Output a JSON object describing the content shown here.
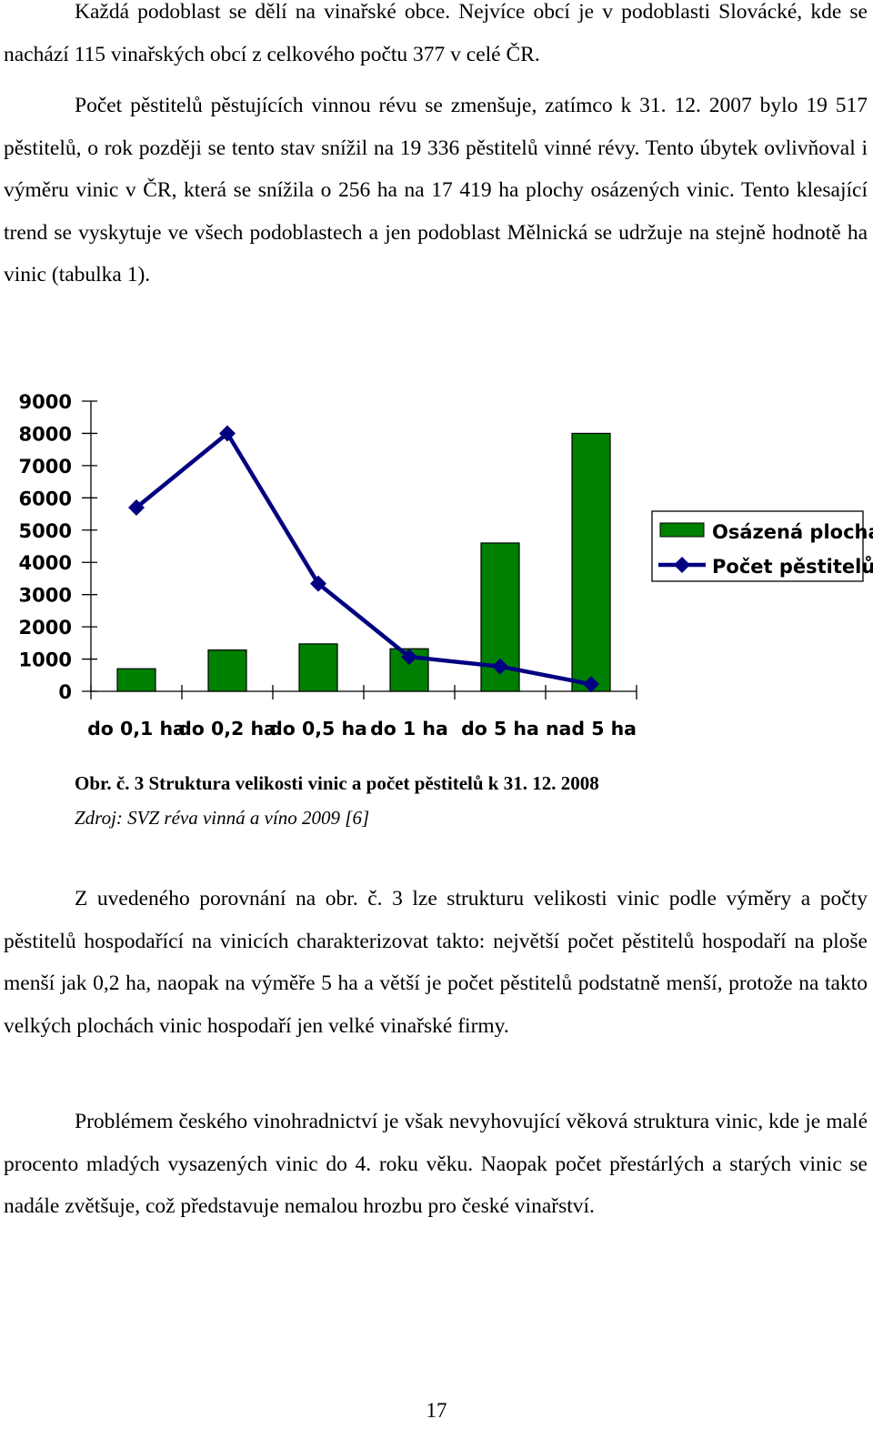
{
  "paragraphs": {
    "p1": "Každá podoblast se dělí na vinařské obce. Nejvíce obcí je v podoblasti Slovácké, kde se nachází 115 vinařských obcí z celkového počtu 377 v celé ČR.",
    "p2": "Počet pěstitelů pěstujících vinnou révu se zmenšuje, zatímco k 31. 12. 2007 bylo 19 517 pěstitelů, o rok později se tento stav snížil na 19 336 pěstitelů vinné révy. Tento úbytek ovlivňoval i výměru vinic v ČR, která se snížila o 256 ha na 17 419 ha plochy osázených vinic. Tento klesající trend se vyskytuje ve všech podoblastech a jen podoblast Mělnická se udržuje na stejně hodnotě ha vinic (tabulka 1).",
    "p3": "Z uvedeného porovnání na obr. č. 3 lze strukturu velikosti vinic podle výměry a počty pěstitelů hospodařící na vinicích charakterizovat takto: největší počet pěstitelů hospodaří na ploše menší jak 0,2 ha, naopak na výměře 5 ha a větší je počet pěstitelů podstatně menší, protože na takto velkých plochách vinic hospodaří jen velké vinařské firmy.",
    "p4": "Problémem českého vinohradnictví je však nevyhovující věková struktura vinic, kde je malé procento mladých vysazených vinic do 4. roku věku. Naopak počet přestárlých a starých vinic se nadále zvětšuje, což představuje nemalou hrozbu pro české vinařství."
  },
  "caption": {
    "title": "Obr. č. 3 Struktura velikosti vinic a počet pěstitelů k 31. 12. 2008",
    "source": "Zdroj: SVZ réva vinná a víno 2009 [6]"
  },
  "page_number": "17",
  "chart_data": {
    "type": "bar",
    "categories": [
      "do 0,1 ha",
      "do 0,2 ha",
      "do 0,5 ha",
      "do 1 ha",
      "do 5 ha",
      "nad 5 ha"
    ],
    "ylim": [
      0,
      9000
    ],
    "yticks": [
      "0",
      "1000",
      "2000",
      "3000",
      "4000",
      "5000",
      "6000",
      "7000",
      "8000",
      "9000"
    ],
    "series": [
      {
        "name": "Osázená plocha",
        "kind": "bar",
        "color": "#008000",
        "values": [
          700,
          1280,
          1470,
          1320,
          4600,
          8000
        ]
      },
      {
        "name": "Počet pěstitelů",
        "kind": "line",
        "color": "#000080",
        "values": [
          5700,
          8000,
          3340,
          1070,
          770,
          220
        ]
      }
    ],
    "legend_position": "right",
    "grid": false
  }
}
